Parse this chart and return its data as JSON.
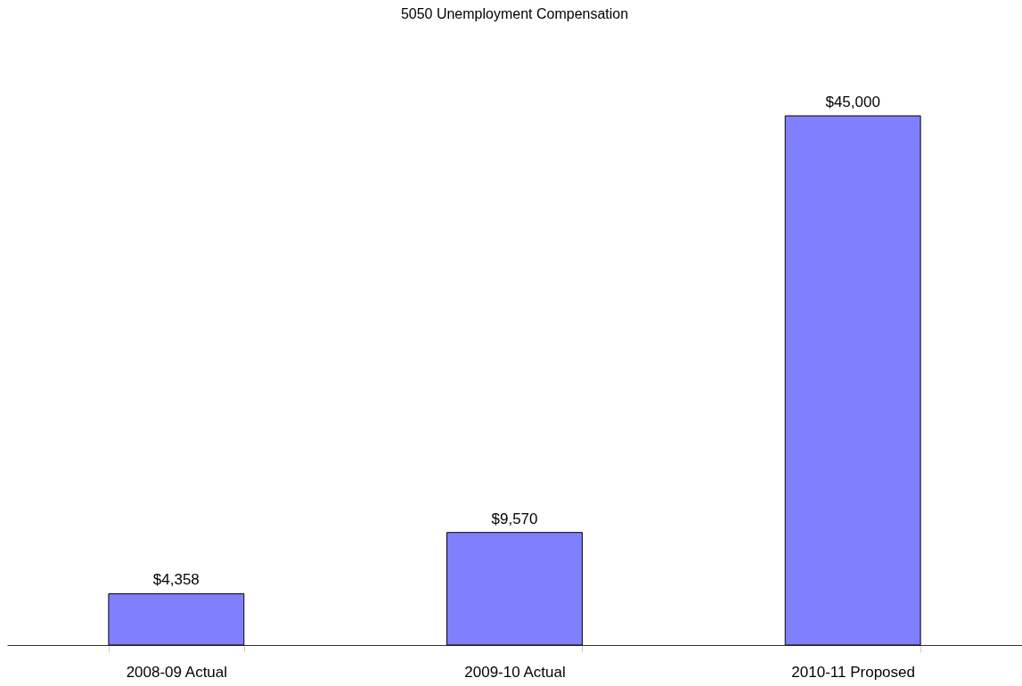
{
  "chart_data": {
    "type": "bar",
    "title": "5050  Unemployment Compensation",
    "categories": [
      "2008-09 Actual",
      "2009-10 Actual",
      "2010-11 Proposed"
    ],
    "values": [
      4358,
      9570,
      45000
    ],
    "value_labels": [
      "$4,358",
      "$9,570",
      "$45,000"
    ],
    "color": "#8080ff",
    "grid": false,
    "tick_labels": "x"
  }
}
